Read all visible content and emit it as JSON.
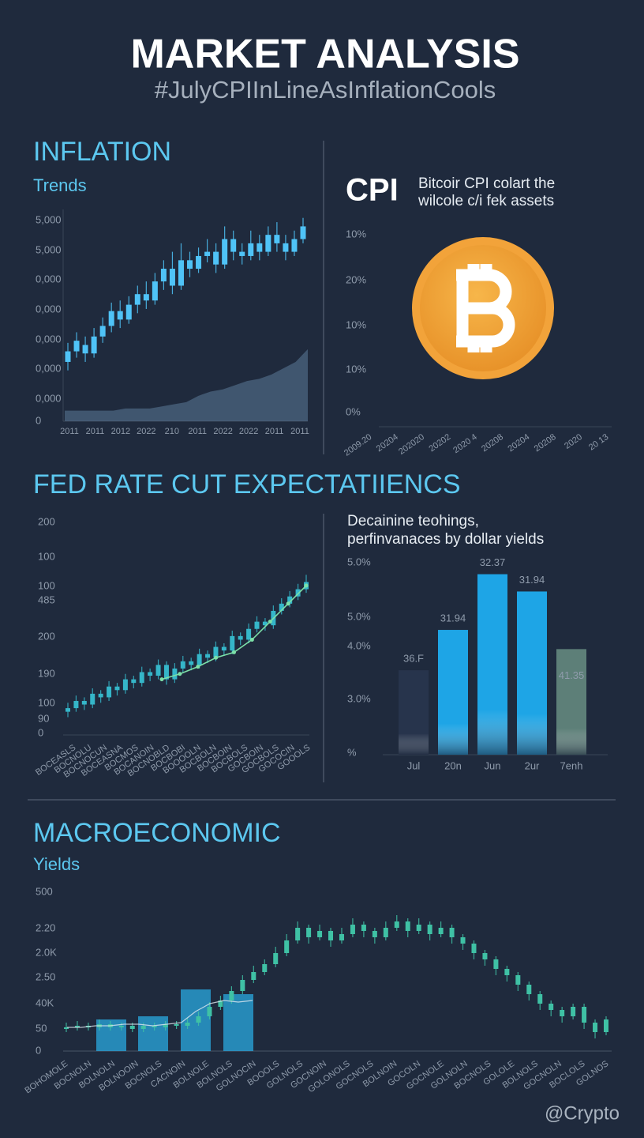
{
  "header": {
    "title": "MARKET ANALYSIS",
    "subtitle": "#JulyCPIInLineAsInflationCools"
  },
  "inflation": {
    "title": "INFLATION",
    "subtitle": "Trends",
    "y_labels": [
      "5,000",
      "5,000",
      "0,000",
      "0,000",
      "0,000",
      "0,000",
      "0,000",
      "0"
    ],
    "x_labels": [
      "2011",
      "2011",
      "2012",
      "2022",
      "210",
      "2011",
      "2022",
      "2022",
      "2011",
      "2011"
    ],
    "ylim": [
      0,
      100
    ],
    "candle_color": "#4fc3f7",
    "area_color": "#5b7a99",
    "candles": [
      [
        28,
        33,
        37,
        24
      ],
      [
        33,
        38,
        42,
        30
      ],
      [
        36,
        32,
        40,
        28
      ],
      [
        32,
        40,
        44,
        30
      ],
      [
        40,
        45,
        49,
        37
      ],
      [
        45,
        52,
        56,
        42
      ],
      [
        52,
        48,
        57,
        44
      ],
      [
        48,
        55,
        59,
        46
      ],
      [
        55,
        60,
        64,
        51
      ],
      [
        60,
        57,
        66,
        53
      ],
      [
        57,
        66,
        70,
        55
      ],
      [
        66,
        72,
        76,
        62
      ],
      [
        72,
        64,
        80,
        60
      ],
      [
        64,
        76,
        84,
        62
      ],
      [
        76,
        72,
        80,
        68
      ],
      [
        72,
        78,
        82,
        70
      ],
      [
        78,
        80,
        86,
        75
      ],
      [
        80,
        74,
        84,
        70
      ],
      [
        74,
        86,
        92,
        72
      ],
      [
        86,
        80,
        90,
        76
      ],
      [
        80,
        78,
        84,
        74
      ],
      [
        78,
        84,
        90,
        76
      ],
      [
        84,
        80,
        88,
        76
      ],
      [
        80,
        88,
        92,
        78
      ],
      [
        88,
        84,
        94,
        80
      ],
      [
        84,
        80,
        88,
        76
      ],
      [
        80,
        86,
        90,
        78
      ],
      [
        86,
        92,
        96,
        84
      ]
    ],
    "area": [
      5,
      5,
      5,
      5,
      5,
      6,
      6,
      6,
      7,
      8,
      9,
      12,
      14,
      15,
      17,
      19,
      20,
      22,
      25,
      28,
      34
    ]
  },
  "cpi": {
    "title": "CPI",
    "caption": [
      "Bitcoir CPI colart the",
      "wilcole c/i fek assets"
    ],
    "y_labels": [
      "10%",
      "20%",
      "10%",
      "10%",
      "0%"
    ],
    "x_labels": [
      "2009.20",
      "20204",
      "202020",
      "20202",
      "2020 4",
      "20208",
      "20204",
      "20208",
      "2020",
      "20 13"
    ],
    "coin_color": "#f2a33a"
  },
  "fed": {
    "title": "FED RATE CUT EXPECTATIIENCS",
    "y_labels": [
      "200",
      "100",
      "100",
      "485",
      "200",
      "190",
      "100",
      "90",
      "0"
    ],
    "x_labels": [
      "BOCEASLS",
      "BOCNOLU",
      "BOCNOCUN",
      "BOCEASNA",
      "BOCMOS",
      "BOCANOIN",
      "BOCNOBLD",
      "BOCBOBI",
      "BOOOOLN",
      "BOCBOLN",
      "BOCBOIN",
      "BOCBOLS",
      "GOCBOIN",
      "GOCBOLS",
      "GOCOCIN",
      "GOOOLS"
    ],
    "ylim": [
      0,
      100
    ],
    "candle_color": "#35b6c9",
    "line_color": "#7de0a8",
    "candles": [
      [
        12,
        14,
        17,
        9
      ],
      [
        14,
        18,
        21,
        12
      ],
      [
        18,
        16,
        20,
        13
      ],
      [
        16,
        22,
        25,
        14
      ],
      [
        22,
        20,
        24,
        17
      ],
      [
        20,
        26,
        29,
        18
      ],
      [
        26,
        24,
        28,
        21
      ],
      [
        24,
        30,
        33,
        22
      ],
      [
        30,
        28,
        32,
        25
      ],
      [
        28,
        34,
        37,
        26
      ],
      [
        34,
        32,
        36,
        29
      ],
      [
        32,
        38,
        41,
        30
      ],
      [
        38,
        30,
        40,
        27
      ],
      [
        30,
        36,
        39,
        28
      ],
      [
        36,
        40,
        43,
        34
      ],
      [
        40,
        38,
        42,
        35
      ],
      [
        38,
        44,
        47,
        36
      ],
      [
        44,
        42,
        46,
        39
      ],
      [
        42,
        48,
        51,
        40
      ],
      [
        48,
        46,
        50,
        43
      ],
      [
        46,
        54,
        57,
        44
      ],
      [
        54,
        52,
        56,
        49
      ],
      [
        52,
        58,
        61,
        50
      ],
      [
        58,
        62,
        65,
        56
      ],
      [
        62,
        60,
        64,
        57
      ],
      [
        60,
        68,
        71,
        58
      ],
      [
        68,
        72,
        75,
        66
      ],
      [
        72,
        76,
        79,
        70
      ],
      [
        76,
        80,
        83,
        74
      ],
      [
        80,
        84,
        88,
        78
      ]
    ],
    "line": [
      30,
      33,
      37,
      42,
      45,
      52,
      62,
      72,
      82
    ]
  },
  "yields_bars": {
    "caption": [
      "Decainine teohings,",
      "perfinvanaces by dollar yields"
    ],
    "y_labels": [
      "5.0%",
      "5.0%",
      "4.0%",
      "3.0%",
      "%"
    ],
    "categories": [
      "Jul",
      "20n",
      "Jun",
      "2ur",
      "7enh"
    ],
    "values": [
      44,
      65,
      94,
      85,
      55
    ],
    "labels": [
      "36.F",
      "31.94",
      "32.37",
      "31.94",
      "41.35"
    ],
    "colors": [
      "#27344c",
      "#1ea5e6",
      "#1ea5e6",
      "#1ea5e6",
      "#5d7f78"
    ],
    "ylim": [
      0,
      100
    ]
  },
  "macro": {
    "title": "MACROECONOMIC",
    "subtitle": "Yields",
    "y_labels": [
      "500",
      "2.20",
      "2.0K",
      "2.50",
      "40K",
      "50",
      "0"
    ],
    "x_labels": [
      "BOHOMOLE",
      "BOCNOLN",
      "BOLNOLN",
      "BOLNOOIN",
      "BOCNOLS",
      "CACNOIN",
      "BOLNOLE",
      "BOLNOLS",
      "GOLNOCIN",
      "BOOOLS",
      "GOLNOLS",
      "GOCNOIN",
      "GOLONOLS",
      "GOCNOLS",
      "BOLNOIN",
      "GOCOLN",
      "GOCNOLE",
      "GOLNOLN",
      "BOCNOLS",
      "GOLOLE",
      "BOLNOLS",
      "GOCNOLN",
      "BOCLOLS",
      "GOLNOS"
    ],
    "ylim": [
      0,
      100
    ],
    "candle_color": "#3fc1a5",
    "bar_color": "#29a9e0",
    "line_color": "#dfe8f0",
    "bars": [
      20,
      22,
      39,
      36
    ],
    "line": [
      15,
      15,
      16,
      16,
      17,
      17,
      16,
      17,
      18,
      25,
      30,
      32,
      31,
      32
    ],
    "candles": [
      [
        14,
        15,
        18,
        12
      ],
      [
        15,
        16,
        19,
        13
      ],
      [
        16,
        15,
        18,
        13
      ],
      [
        15,
        17,
        20,
        13
      ],
      [
        17,
        15,
        19,
        13
      ],
      [
        15,
        16,
        18,
        13
      ],
      [
        16,
        14,
        18,
        12
      ],
      [
        14,
        16,
        18,
        12
      ],
      [
        16,
        15,
        18,
        13
      ],
      [
        15,
        17,
        19,
        13
      ],
      [
        17,
        16,
        19,
        14
      ],
      [
        16,
        18,
        21,
        14
      ],
      [
        18,
        22,
        25,
        16
      ],
      [
        22,
        28,
        31,
        20
      ],
      [
        28,
        32,
        35,
        26
      ],
      [
        32,
        38,
        41,
        30
      ],
      [
        38,
        45,
        48,
        36
      ],
      [
        45,
        50,
        54,
        43
      ],
      [
        50,
        55,
        58,
        48
      ],
      [
        55,
        62,
        66,
        53
      ],
      [
        62,
        70,
        74,
        60
      ],
      [
        70,
        78,
        82,
        68
      ],
      [
        78,
        72,
        80,
        68
      ],
      [
        72,
        76,
        80,
        70
      ],
      [
        76,
        70,
        78,
        66
      ],
      [
        70,
        74,
        78,
        68
      ],
      [
        74,
        80,
        84,
        72
      ],
      [
        80,
        76,
        82,
        72
      ],
      [
        76,
        72,
        78,
        68
      ],
      [
        72,
        78,
        82,
        70
      ],
      [
        78,
        82,
        86,
        76
      ],
      [
        82,
        76,
        84,
        72
      ],
      [
        76,
        80,
        84,
        74
      ],
      [
        80,
        74,
        82,
        70
      ],
      [
        74,
        78,
        82,
        72
      ],
      [
        78,
        72,
        80,
        68
      ],
      [
        72,
        68,
        74,
        64
      ],
      [
        68,
        62,
        70,
        58
      ],
      [
        62,
        58,
        64,
        54
      ],
      [
        58,
        52,
        60,
        48
      ],
      [
        52,
        48,
        54,
        44
      ],
      [
        48,
        42,
        50,
        38
      ],
      [
        42,
        36,
        44,
        32
      ],
      [
        36,
        30,
        38,
        26
      ],
      [
        30,
        26,
        32,
        22
      ],
      [
        26,
        22,
        28,
        18
      ],
      [
        22,
        28,
        30,
        20
      ],
      [
        28,
        18,
        30,
        14
      ],
      [
        18,
        12,
        20,
        8
      ],
      [
        12,
        20,
        22,
        10
      ]
    ]
  },
  "footer": {
    "handle": "@Crypto"
  }
}
